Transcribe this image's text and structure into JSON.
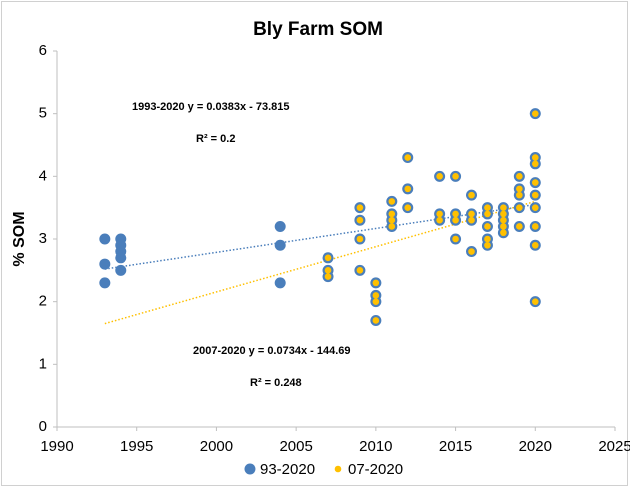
{
  "chart_data": {
    "type": "scatter",
    "title": "Bly Farm SOM",
    "y_label": "% SOM",
    "xlim": [
      1990,
      2025
    ],
    "xticks": [
      1990,
      1995,
      2000,
      2005,
      2010,
      2015,
      2020,
      2025
    ],
    "ylim": [
      0,
      6
    ],
    "yticks": [
      0,
      1,
      2,
      3,
      4,
      5,
      6
    ],
    "legend": "bottom",
    "series": [
      {
        "name": "93-2020",
        "color": "#4a7ebb",
        "x": [
          1993,
          1993,
          1993,
          1994,
          1994,
          1994,
          1994,
          1994,
          2004,
          2004,
          2004,
          2007,
          2007,
          2007,
          2009,
          2009,
          2009,
          2009,
          2010,
          2010,
          2010,
          2010,
          2011,
          2011,
          2011,
          2011,
          2012,
          2012,
          2012,
          2014,
          2014,
          2014,
          2015,
          2015,
          2015,
          2015,
          2016,
          2016,
          2016,
          2016,
          2017,
          2017,
          2017,
          2017,
          2017,
          2018,
          2018,
          2018,
          2018,
          2018,
          2019,
          2019,
          2019,
          2019,
          2019,
          2020,
          2020,
          2020,
          2020,
          2020,
          2020,
          2020,
          2020,
          2020
        ],
        "values": [
          3.0,
          2.6,
          2.3,
          3.0,
          2.9,
          2.8,
          2.7,
          2.5,
          3.2,
          2.9,
          2.3,
          2.7,
          2.5,
          2.4,
          3.5,
          3.3,
          3.0,
          2.5,
          2.3,
          2.1,
          2.0,
          1.7,
          3.6,
          3.4,
          3.3,
          3.2,
          4.3,
          3.8,
          3.5,
          4.0,
          3.4,
          3.3,
          4.0,
          3.4,
          3.3,
          3.0,
          3.7,
          3.4,
          3.3,
          2.8,
          3.5,
          3.4,
          3.2,
          3.0,
          2.9,
          3.5,
          3.4,
          3.3,
          3.2,
          3.1,
          4.0,
          3.8,
          3.7,
          3.5,
          3.2,
          5.0,
          4.3,
          4.2,
          3.9,
          3.7,
          3.5,
          3.2,
          2.9,
          2.0
        ]
      },
      {
        "name": "07-2020",
        "color": "#ffc000",
        "x": [
          2007,
          2007,
          2007,
          2009,
          2009,
          2009,
          2009,
          2010,
          2010,
          2010,
          2010,
          2011,
          2011,
          2011,
          2011,
          2012,
          2012,
          2012,
          2014,
          2014,
          2014,
          2015,
          2015,
          2015,
          2015,
          2016,
          2016,
          2016,
          2016,
          2017,
          2017,
          2017,
          2017,
          2017,
          2018,
          2018,
          2018,
          2018,
          2018,
          2019,
          2019,
          2019,
          2019,
          2019,
          2020,
          2020,
          2020,
          2020,
          2020,
          2020,
          2020,
          2020,
          2020
        ],
        "values": [
          2.7,
          2.5,
          2.4,
          3.5,
          3.3,
          3.0,
          2.5,
          2.3,
          2.1,
          2.0,
          1.7,
          3.6,
          3.4,
          3.3,
          3.2,
          4.3,
          3.8,
          3.5,
          4.0,
          3.4,
          3.3,
          4.0,
          3.4,
          3.3,
          3.0,
          3.7,
          3.4,
          3.3,
          2.8,
          3.5,
          3.4,
          3.2,
          3.0,
          2.9,
          3.5,
          3.4,
          3.3,
          3.2,
          3.1,
          4.0,
          3.8,
          3.7,
          3.5,
          3.2,
          5.0,
          4.3,
          4.2,
          3.9,
          3.7,
          3.5,
          3.2,
          2.9,
          2.0
        ]
      }
    ],
    "trendlines": [
      {
        "color": "#4a7ebb",
        "x": [
          1993,
          2020
        ],
        "values": [
          2.52,
          3.55
        ]
      },
      {
        "color": "#ffc000",
        "x": [
          1993,
          2020
        ],
        "values": [
          1.65,
          3.6
        ]
      }
    ],
    "annotations": [
      "1993-2020 y = 0.0383x - 73.815",
      "R² = 0.2",
      "2007-2020 y = 0.0734x - 144.69",
      "R² = 0.248"
    ]
  }
}
